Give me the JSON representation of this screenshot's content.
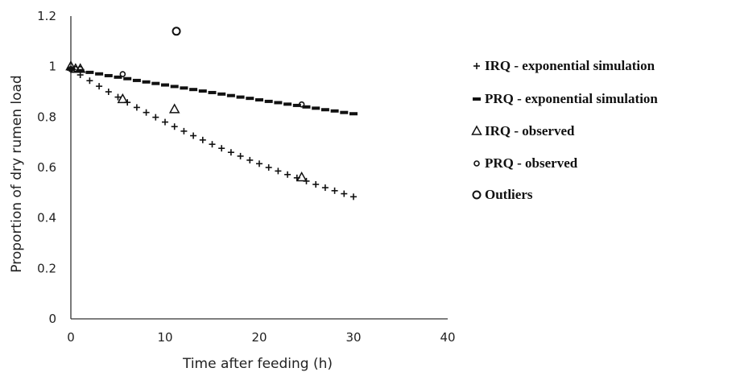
{
  "chart_data": {
    "type": "scatter",
    "title": "",
    "xlabel": "Time after feeding (h)",
    "ylabel": "Proportion of dry rumen load",
    "xlim": [
      0,
      40
    ],
    "ylim": [
      0,
      1.2
    ],
    "x_ticks": [
      0,
      10,
      20,
      30,
      40
    ],
    "y_ticks": [
      0,
      0.2,
      0.4,
      0.6,
      0.8,
      1,
      1.2
    ],
    "x_tick_labels": [
      "0",
      "10",
      "20",
      "30",
      "40"
    ],
    "y_tick_labels": [
      "0",
      "0.2",
      "0.4",
      "0.6",
      "0.8",
      "1",
      "1.2"
    ],
    "grid": false,
    "legend_position": "right",
    "series": [
      {
        "name": "IRQ - exponential simulation",
        "marker": "plus",
        "color": "#111111",
        "x": [
          0,
          1,
          2,
          3,
          4,
          5,
          6,
          7,
          8,
          9,
          10,
          11,
          12,
          13,
          14,
          15,
          16,
          17,
          18,
          19,
          20,
          21,
          22,
          23,
          24,
          25,
          26,
          27,
          28,
          29,
          30
        ],
        "y": [
          0.99,
          0.967,
          0.944,
          0.922,
          0.9,
          0.879,
          0.858,
          0.838,
          0.818,
          0.799,
          0.78,
          0.762,
          0.744,
          0.726,
          0.709,
          0.692,
          0.676,
          0.66,
          0.645,
          0.629,
          0.615,
          0.6,
          0.586,
          0.572,
          0.559,
          0.546,
          0.533,
          0.52,
          0.508,
          0.496,
          0.484
        ]
      },
      {
        "name": "PRQ - exponential simulation",
        "marker": "dash",
        "color": "#111111",
        "x": [
          0,
          1,
          2,
          3,
          4,
          5,
          6,
          7,
          8,
          9,
          10,
          11,
          12,
          13,
          14,
          15,
          16,
          17,
          18,
          19,
          20,
          21,
          22,
          23,
          24,
          25,
          26,
          27,
          28,
          29,
          30
        ],
        "y": [
          0.99,
          0.984,
          0.977,
          0.971,
          0.964,
          0.958,
          0.952,
          0.945,
          0.939,
          0.933,
          0.927,
          0.921,
          0.915,
          0.909,
          0.903,
          0.897,
          0.891,
          0.885,
          0.879,
          0.874,
          0.868,
          0.862,
          0.857,
          0.851,
          0.846,
          0.84,
          0.835,
          0.829,
          0.824,
          0.818,
          0.813
        ]
      },
      {
        "name": "IRQ - observed",
        "marker": "triangle",
        "color": "#111111",
        "x": [
          0,
          0.5,
          1,
          5.5,
          11,
          24.5
        ],
        "y": [
          1.0,
          0.99,
          0.99,
          0.87,
          0.83,
          0.56
        ]
      },
      {
        "name": "PRQ - observed",
        "marker": "small-circle",
        "color": "#111111",
        "x": [
          0,
          0.5,
          1,
          5.5,
          24.5
        ],
        "y": [
          0.99,
          0.99,
          0.99,
          0.97,
          0.85
        ]
      },
      {
        "name": "Outliers",
        "marker": "circle",
        "color": "#111111",
        "x": [
          11.2
        ],
        "y": [
          1.14
        ]
      }
    ]
  }
}
